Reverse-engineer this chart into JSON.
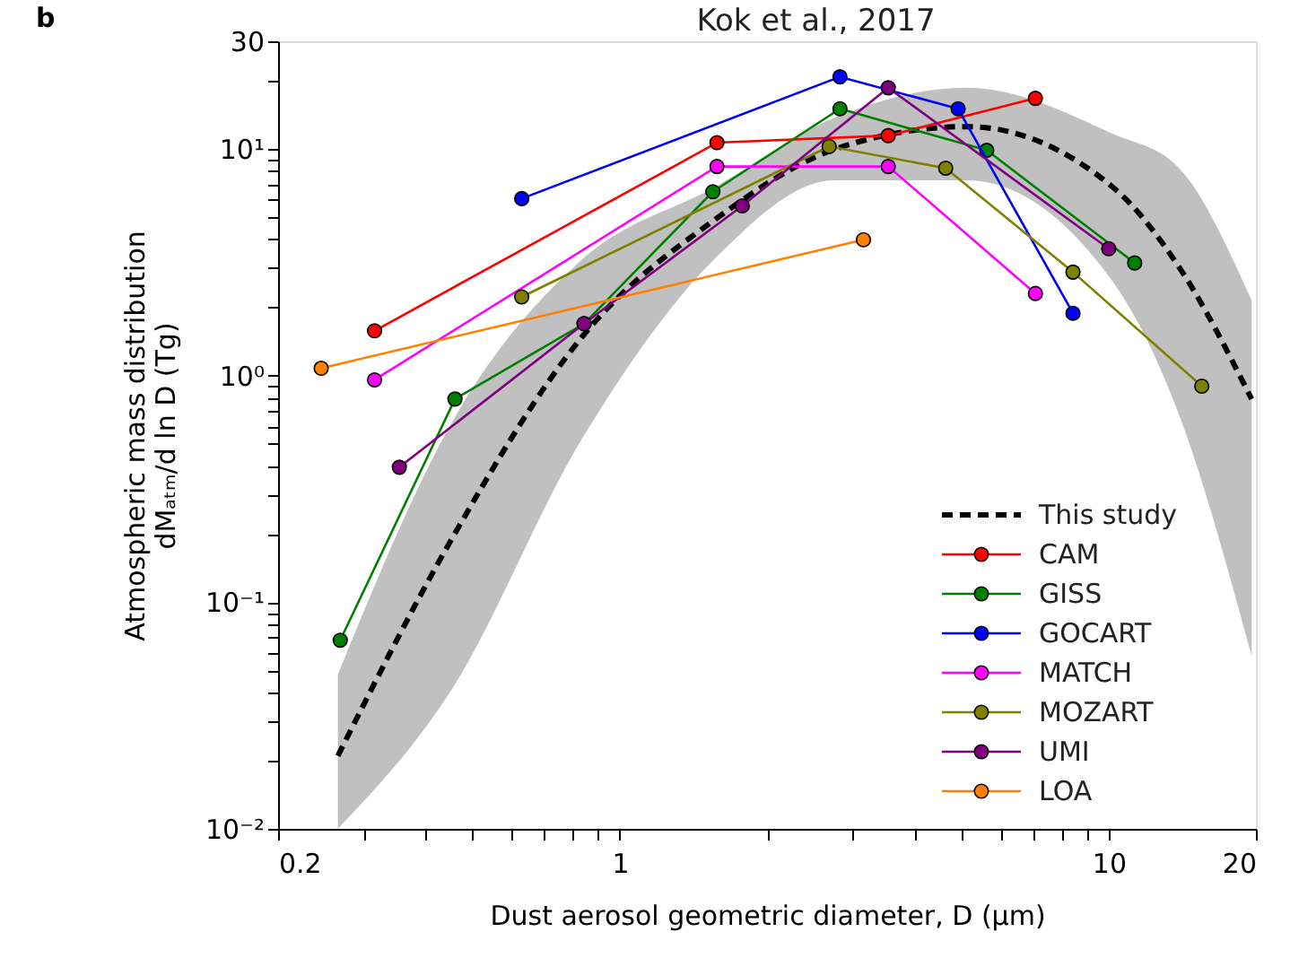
{
  "chart_data": {
    "type": "line",
    "title": "Kok et al., 2017",
    "xlabel": "Dust aerosol geometric diameter, D (μm)",
    "ylabel": [
      "Atmospheric mass distribution",
      "dMₐₜₘ/d ln D (Tg)"
    ],
    "annotations": [
      "b"
    ],
    "log": "xy",
    "grid": false,
    "legend": "bottom right",
    "marker": "circle",
    "xlim": [
      0.2,
      20
    ],
    "ylim": [
      0.01,
      30
    ],
    "xticks": [
      0.2,
      {
        "value": 0.3,
        "label": null
      },
      {
        "value": 0.4,
        "label": null
      },
      {
        "value": 0.5,
        "label": null
      },
      {
        "value": 0.6,
        "label": null
      },
      {
        "value": 0.7,
        "label": null
      },
      {
        "value": 0.8,
        "label": null
      },
      {
        "value": 0.9,
        "label": null
      },
      1,
      {
        "value": 2,
        "label": null
      },
      {
        "value": 3,
        "label": null
      },
      {
        "value": 4,
        "label": null
      },
      {
        "value": 5,
        "label": null
      },
      {
        "value": 6,
        "label": null
      },
      {
        "value": 7,
        "label": null
      },
      {
        "value": 8,
        "label": null
      },
      {
        "value": 9,
        "label": null
      },
      10,
      20
    ],
    "yticks": [
      {
        "value": 0.01,
        "label": "10⁻²"
      },
      {
        "value": 0.02,
        "label": null
      },
      {
        "value": 0.03,
        "label": null
      },
      {
        "value": 0.04,
        "label": null
      },
      {
        "value": 0.05,
        "label": null
      },
      {
        "value": 0.06,
        "label": null
      },
      {
        "value": 0.07,
        "label": null
      },
      {
        "value": 0.08,
        "label": null
      },
      {
        "value": 0.09,
        "label": null
      },
      {
        "value": 0.1,
        "label": "10⁻¹"
      },
      {
        "value": 0.2,
        "label": null
      },
      {
        "value": 0.3,
        "label": null
      },
      {
        "value": 0.4,
        "label": null
      },
      {
        "value": 0.5,
        "label": null
      },
      {
        "value": 0.6,
        "label": null
      },
      {
        "value": 0.7,
        "label": null
      },
      {
        "value": 0.8,
        "label": null
      },
      {
        "value": 0.9,
        "label": null
      },
      {
        "value": 1,
        "label": "10⁰"
      },
      {
        "value": 2,
        "label": null
      },
      {
        "value": 3,
        "label": null
      },
      {
        "value": 4,
        "label": null
      },
      {
        "value": 5,
        "label": null
      },
      {
        "value": 6,
        "label": null
      },
      {
        "value": 7,
        "label": null
      },
      {
        "value": 8,
        "label": null
      },
      {
        "value": 9,
        "label": null
      },
      {
        "value": 10,
        "label": "10¹"
      },
      {
        "value": 20,
        "label": null
      },
      30
    ],
    "series": [
      {
        "name": "This study",
        "color": "#000000",
        "line_style": "dashed",
        "marker": "none",
        "x": [
          0.265,
          0.449,
          0.838,
          1.56,
          2.75,
          5.13,
          10.2,
          13.9,
          19.6
        ],
        "values": [
          0.021,
          0.184,
          1.49,
          4.87,
          10,
          12.6,
          6.8,
          3.04,
          0.79
        ],
        "lower": [
          0.01,
          0.04,
          0.53,
          3.27,
          7.3,
          7.3,
          2.6,
          0.68,
          0.058
        ],
        "upper": [
          0.048,
          0.6,
          3.27,
          6.8,
          13.8,
          18.7,
          11.7,
          8.3,
          2.15
        ]
      },
      {
        "name": "CAM",
        "color": "#ff0000",
        "x": [
          0.315,
          1.58,
          3.54,
          7.08
        ],
        "values": [
          1.58,
          10.7,
          11.5,
          16.8
        ]
      },
      {
        "name": "GISS",
        "color": "#008000",
        "x": [
          0.268,
          0.46,
          0.845,
          1.55,
          2.82,
          5.63,
          11.3
        ],
        "values": [
          0.068,
          0.79,
          1.7,
          6.5,
          15.1,
          9.9,
          3.15
        ]
      },
      {
        "name": "GOCART",
        "color": "#0000ff",
        "x": [
          0.63,
          2.82,
          4.92,
          8.45
        ],
        "values": [
          6.06,
          20.9,
          15.1,
          1.89
        ]
      },
      {
        "name": "MATCH",
        "color": "#ff00ff",
        "x": [
          0.315,
          1.58,
          3.54,
          7.08
        ],
        "values": [
          0.96,
          8.4,
          8.4,
          2.31
        ]
      },
      {
        "name": "MOZART",
        "color": "#808000",
        "x": [
          0.63,
          2.68,
          4.64,
          8.45,
          15.5
        ],
        "values": [
          2.23,
          10.3,
          8.26,
          2.87,
          0.9
        ]
      },
      {
        "name": "UMI",
        "color": "#800080",
        "x": [
          0.354,
          0.845,
          1.78,
          3.54,
          10
        ],
        "values": [
          0.395,
          1.7,
          5.63,
          18.7,
          3.64
        ]
      },
      {
        "name": "LOA",
        "color": "#ff8000",
        "x": [
          0.245,
          3.15
        ],
        "values": [
          1.08,
          3.99
        ]
      }
    ]
  }
}
